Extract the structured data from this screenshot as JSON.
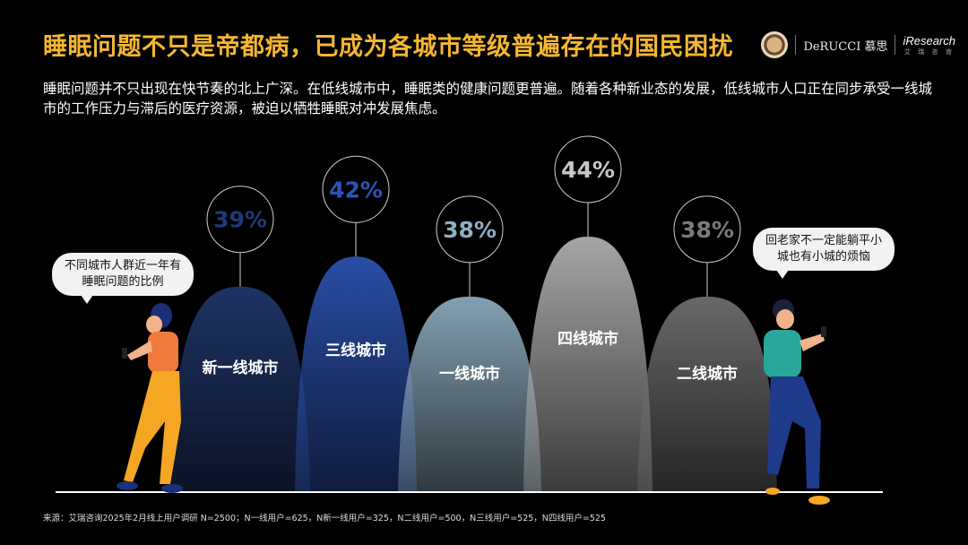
{
  "title": "睡眠问题不只是帝都病，已成为各城市等级普遍存在的国民困扰",
  "description": "睡眠问题并不只出现在快节奏的北上广深。在低线城市中，睡眠类的健康问题更普遍。随着各种新业态的发展，低线城市人口正在同步承受一线城市的工作压力与滞后的医疗资源，被迫以牺牲睡眠对冲发展焦虑。",
  "logos": {
    "derucci": "DeRUCCI 慕思",
    "iresearch": "iResearch",
    "iresearch_sub": "艾 瑞 咨 询"
  },
  "bubbles": {
    "left": "不同城市人群近一年有睡眠问题的比例",
    "right": "回老家不一定能躺平小城也有小城的烦恼"
  },
  "source": "来源：艾瑞咨询2025年2月线上用户调研 N=2500；N一线用户=625，N新一线用户=325，N二线用户=500，N三线用户=525，N四线用户=525",
  "chart_data": {
    "type": "area",
    "categories": [
      "新一线城市",
      "三线城市",
      "一线城市",
      "四线城市",
      "二线城市"
    ],
    "values": [
      39,
      42,
      38,
      44,
      38
    ],
    "value_labels": [
      "39%",
      "42%",
      "38%",
      "44%",
      "38%"
    ],
    "colors": [
      "#1f3566",
      "#2a4fa8",
      "#86a3b5",
      "#a9a9a9",
      "#6a6a6a"
    ],
    "label_colors": [
      "#1e3a7a",
      "#2a54b8",
      "#8faec2",
      "#c8c8c8",
      "#7a7a7a"
    ]
  }
}
